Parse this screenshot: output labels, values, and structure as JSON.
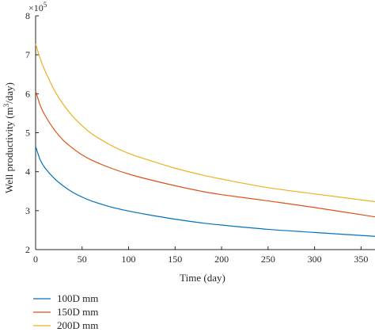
{
  "chart_data": {
    "type": "line",
    "xlabel": "Time (day)",
    "ylabel_main": "Well productivity (m",
    "ylabel_sup": "3",
    "ylabel_tail": "/day)",
    "multiplier_base": "×10",
    "multiplier_exp": "5",
    "xlim": [
      0,
      365
    ],
    "ylim": [
      2,
      8
    ],
    "xticks": [
      0,
      50,
      100,
      150,
      200,
      250,
      300,
      350
    ],
    "yticks": [
      2,
      3,
      4,
      5,
      6,
      7,
      8
    ],
    "legend_position": "bottom",
    "series": [
      {
        "name": "100D mm",
        "color": "#0072BD",
        "x": [
          0,
          5,
          10,
          20,
          30,
          40,
          50,
          60,
          80,
          100,
          120,
          150,
          180,
          200,
          250,
          300,
          365
        ],
        "y": [
          4.65,
          4.3,
          4.1,
          3.83,
          3.63,
          3.47,
          3.35,
          3.25,
          3.1,
          2.99,
          2.9,
          2.78,
          2.68,
          2.63,
          2.52,
          2.44,
          2.34
        ]
      },
      {
        "name": "150D mm",
        "color": "#D95319",
        "x": [
          0,
          5,
          10,
          20,
          30,
          40,
          50,
          60,
          80,
          100,
          120,
          150,
          180,
          200,
          250,
          300,
          365
        ],
        "y": [
          6.07,
          5.7,
          5.45,
          5.08,
          4.8,
          4.6,
          4.43,
          4.3,
          4.1,
          3.94,
          3.81,
          3.64,
          3.49,
          3.41,
          3.25,
          3.08,
          2.84
        ]
      },
      {
        "name": "200D mm",
        "color": "#EDB120",
        "x": [
          0,
          5,
          10,
          20,
          30,
          40,
          50,
          60,
          80,
          100,
          120,
          150,
          180,
          200,
          250,
          300,
          365
        ],
        "y": [
          7.28,
          6.9,
          6.6,
          6.1,
          5.72,
          5.42,
          5.18,
          4.98,
          4.69,
          4.47,
          4.31,
          4.09,
          3.91,
          3.81,
          3.59,
          3.43,
          3.23
        ]
      }
    ]
  }
}
